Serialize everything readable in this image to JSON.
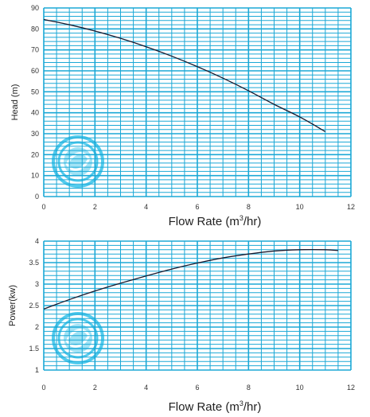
{
  "colors": {
    "grid": "#1ba8d6",
    "curve": "#1a1a2e",
    "logo": "#35c3ea",
    "text": "#222222"
  },
  "logo": {
    "icon": "circular-swirl-logo-icon"
  },
  "chart_data": [
    {
      "type": "line",
      "ylabel": "Head (m)",
      "xlabel_parts": {
        "before": "Flow Rate (m",
        "sup": "3",
        "after": "/hr)"
      },
      "xlim": [
        0,
        12
      ],
      "ylim": [
        0,
        90
      ],
      "x_ticks": [
        "0",
        "2",
        "4",
        "6",
        "8",
        "10",
        "12"
      ],
      "y_ticks": [
        "0",
        "10",
        "20",
        "30",
        "40",
        "50",
        "60",
        "70",
        "80",
        "90"
      ],
      "x_tick_values": [
        0,
        2,
        4,
        6,
        8,
        10,
        12
      ],
      "y_tick_values": [
        0,
        10,
        20,
        30,
        40,
        50,
        60,
        70,
        80,
        90
      ],
      "grid": true,
      "series": [
        {
          "x": [
            0,
            1,
            2,
            3,
            4,
            5,
            6,
            7,
            8,
            9,
            10,
            11
          ],
          "y": [
            84.5,
            82,
            79,
            75.5,
            71.5,
            67,
            62,
            56.5,
            50.5,
            44,
            38,
            31
          ]
        }
      ]
    },
    {
      "type": "line",
      "ylabel": "Power(kw)",
      "xlabel_parts": {
        "before": "Flow Rate (m",
        "sup": "3",
        "after": "/hr)"
      },
      "xlim": [
        0,
        12
      ],
      "ylim": [
        1,
        4
      ],
      "x_ticks": [
        "0",
        "2",
        "4",
        "6",
        "8",
        "10",
        "12"
      ],
      "y_ticks": [
        "1",
        "1.5",
        "2",
        "2.5",
        "3",
        "3.5",
        "4"
      ],
      "x_tick_values": [
        0,
        2,
        4,
        6,
        8,
        10,
        12
      ],
      "y_tick_values": [
        1,
        1.5,
        2,
        2.5,
        3,
        3.5,
        4
      ],
      "grid": true,
      "series": [
        {
          "x": [
            0,
            1,
            2,
            3,
            4,
            5,
            6,
            7,
            8,
            9,
            10,
            11,
            11.5
          ],
          "y": [
            2.42,
            2.64,
            2.84,
            3.02,
            3.19,
            3.35,
            3.49,
            3.61,
            3.7,
            3.77,
            3.8,
            3.8,
            3.78
          ]
        }
      ]
    }
  ]
}
